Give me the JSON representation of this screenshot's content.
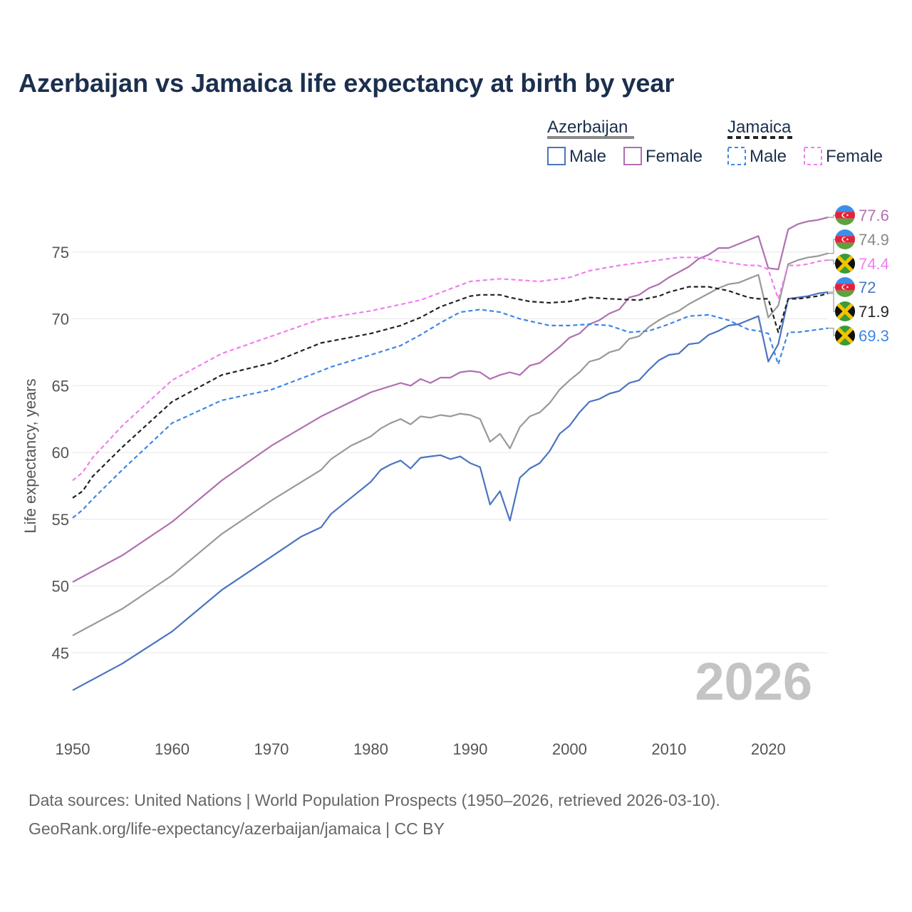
{
  "title": "Azerbaijan vs Jamaica life expectancy at birth by year",
  "legend": {
    "groups": [
      {
        "name": "Azerbaijan",
        "style": "solid",
        "color": "#888888"
      },
      {
        "name": "Jamaica",
        "style": "dashed",
        "color": "#222222"
      }
    ],
    "items": [
      {
        "label": "Male",
        "color": "#4a74c0",
        "style": "solid"
      },
      {
        "label": "Female",
        "color": "#b070b0",
        "style": "solid"
      },
      {
        "label": "Male",
        "color": "#3d87e6",
        "style": "dashed"
      },
      {
        "label": "Female",
        "color": "#f07ef0",
        "style": "dashed"
      }
    ]
  },
  "year_watermark": "2026",
  "footer": {
    "line1": "Data sources: United Nations | World Population Prospects (1950–2026, retrieved 2026-03-10).",
    "line2": "GeoRank.org/life-expectancy/azerbaijan/jamaica | CC BY"
  },
  "end_labels": [
    {
      "text": "77.6",
      "color": "#b070b0",
      "flag": "azerbaijan",
      "value": 77.6
    },
    {
      "text": "74.9",
      "color": "#888888",
      "flag": "azerbaijan",
      "value": 74.9
    },
    {
      "text": "74.4",
      "color": "#f07ef0",
      "flag": "jamaica",
      "value": 74.4
    },
    {
      "text": "72",
      "color": "#4a74c0",
      "flag": "azerbaijan",
      "value": 72.0
    },
    {
      "text": "71.9",
      "color": "#222222",
      "flag": "jamaica",
      "value": 71.9
    },
    {
      "text": "69.3",
      "color": "#3d87e6",
      "flag": "jamaica",
      "value": 69.3
    }
  ],
  "chart_data": {
    "type": "line",
    "title": "Azerbaijan vs Jamaica life expectancy at birth by year",
    "xlabel": "",
    "ylabel": "Life expectancy, years",
    "xlim": [
      1950,
      2026
    ],
    "ylim": [
      40,
      80
    ],
    "x_ticks": [
      1950,
      1960,
      1970,
      1980,
      1990,
      2000,
      2010,
      2020
    ],
    "y_ticks": [
      45,
      50,
      55,
      60,
      65,
      70,
      75
    ],
    "grid": true,
    "series": [
      {
        "name": "Azerbaijan Female",
        "color": "#b070b0",
        "dash": "solid",
        "points": [
          [
            1950,
            50.3
          ],
          [
            1955,
            52.3
          ],
          [
            1960,
            54.8
          ],
          [
            1965,
            57.9
          ],
          [
            1970,
            60.5
          ],
          [
            1975,
            62.7
          ],
          [
            1980,
            64.5
          ],
          [
            1983,
            65.2
          ],
          [
            1984,
            65.0
          ],
          [
            1985,
            65.5
          ],
          [
            1986,
            65.2
          ],
          [
            1987,
            65.6
          ],
          [
            1988,
            65.6
          ],
          [
            1989,
            66.0
          ],
          [
            1990,
            66.1
          ],
          [
            1991,
            66.0
          ],
          [
            1992,
            65.5
          ],
          [
            1993,
            65.8
          ],
          [
            1994,
            66.0
          ],
          [
            1995,
            65.8
          ],
          [
            1996,
            66.5
          ],
          [
            1997,
            66.7
          ],
          [
            1998,
            67.3
          ],
          [
            1999,
            67.9
          ],
          [
            2000,
            68.6
          ],
          [
            2001,
            68.9
          ],
          [
            2002,
            69.6
          ],
          [
            2003,
            69.9
          ],
          [
            2004,
            70.4
          ],
          [
            2005,
            70.7
          ],
          [
            2006,
            71.6
          ],
          [
            2007,
            71.8
          ],
          [
            2008,
            72.3
          ],
          [
            2009,
            72.6
          ],
          [
            2010,
            73.1
          ],
          [
            2011,
            73.5
          ],
          [
            2012,
            73.9
          ],
          [
            2013,
            74.5
          ],
          [
            2014,
            74.8
          ],
          [
            2015,
            75.3
          ],
          [
            2016,
            75.3
          ],
          [
            2017,
            75.6
          ],
          [
            2018,
            75.9
          ],
          [
            2019,
            76.2
          ],
          [
            2020,
            73.8
          ],
          [
            2021,
            73.7
          ],
          [
            2022,
            76.7
          ],
          [
            2023,
            77.1
          ],
          [
            2024,
            77.3
          ],
          [
            2025,
            77.4
          ],
          [
            2026,
            77.6
          ]
        ]
      },
      {
        "name": "Azerbaijan Both",
        "color": "#999999",
        "dash": "solid",
        "points": [
          [
            1950,
            46.3
          ],
          [
            1955,
            48.3
          ],
          [
            1960,
            50.8
          ],
          [
            1965,
            53.9
          ],
          [
            1970,
            56.4
          ],
          [
            1975,
            58.7
          ],
          [
            1976,
            59.5
          ],
          [
            1978,
            60.5
          ],
          [
            1980,
            61.2
          ],
          [
            1981,
            61.8
          ],
          [
            1982,
            62.2
          ],
          [
            1983,
            62.5
          ],
          [
            1984,
            62.1
          ],
          [
            1985,
            62.7
          ],
          [
            1986,
            62.6
          ],
          [
            1987,
            62.8
          ],
          [
            1988,
            62.7
          ],
          [
            1989,
            62.9
          ],
          [
            1990,
            62.8
          ],
          [
            1991,
            62.5
          ],
          [
            1992,
            60.8
          ],
          [
            1993,
            61.4
          ],
          [
            1994,
            60.3
          ],
          [
            1995,
            61.9
          ],
          [
            1996,
            62.7
          ],
          [
            1997,
            63.0
          ],
          [
            1998,
            63.7
          ],
          [
            1999,
            64.7
          ],
          [
            2000,
            65.4
          ],
          [
            2001,
            66.0
          ],
          [
            2002,
            66.8
          ],
          [
            2003,
            67.0
          ],
          [
            2004,
            67.5
          ],
          [
            2005,
            67.7
          ],
          [
            2006,
            68.5
          ],
          [
            2007,
            68.7
          ],
          [
            2008,
            69.4
          ],
          [
            2009,
            69.9
          ],
          [
            2010,
            70.3
          ],
          [
            2011,
            70.6
          ],
          [
            2012,
            71.1
          ],
          [
            2013,
            71.5
          ],
          [
            2014,
            71.9
          ],
          [
            2015,
            72.3
          ],
          [
            2016,
            72.6
          ],
          [
            2017,
            72.7
          ],
          [
            2018,
            73.0
          ],
          [
            2019,
            73.3
          ],
          [
            2020,
            70.1
          ],
          [
            2021,
            71.0
          ],
          [
            2022,
            74.1
          ],
          [
            2023,
            74.4
          ],
          [
            2024,
            74.6
          ],
          [
            2025,
            74.7
          ],
          [
            2026,
            74.9
          ]
        ]
      },
      {
        "name": "Azerbaijan Male",
        "color": "#4a74c0",
        "dash": "solid",
        "points": [
          [
            1950,
            42.2
          ],
          [
            1955,
            44.2
          ],
          [
            1960,
            46.6
          ],
          [
            1965,
            49.7
          ],
          [
            1970,
            52.2
          ],
          [
            1973,
            53.7
          ],
          [
            1975,
            54.4
          ],
          [
            1976,
            55.4
          ],
          [
            1978,
            56.6
          ],
          [
            1980,
            57.8
          ],
          [
            1981,
            58.7
          ],
          [
            1982,
            59.1
          ],
          [
            1983,
            59.4
          ],
          [
            1984,
            58.8
          ],
          [
            1985,
            59.6
          ],
          [
            1986,
            59.7
          ],
          [
            1987,
            59.8
          ],
          [
            1988,
            59.5
          ],
          [
            1989,
            59.7
          ],
          [
            1990,
            59.2
          ],
          [
            1991,
            58.9
          ],
          [
            1992,
            56.1
          ],
          [
            1993,
            57.1
          ],
          [
            1994,
            54.9
          ],
          [
            1995,
            58.1
          ],
          [
            1996,
            58.8
          ],
          [
            1997,
            59.2
          ],
          [
            1998,
            60.1
          ],
          [
            1999,
            61.4
          ],
          [
            2000,
            62.0
          ],
          [
            2001,
            63.0
          ],
          [
            2002,
            63.8
          ],
          [
            2003,
            64.0
          ],
          [
            2004,
            64.4
          ],
          [
            2005,
            64.6
          ],
          [
            2006,
            65.2
          ],
          [
            2007,
            65.4
          ],
          [
            2008,
            66.2
          ],
          [
            2009,
            66.9
          ],
          [
            2010,
            67.3
          ],
          [
            2011,
            67.4
          ],
          [
            2012,
            68.1
          ],
          [
            2013,
            68.2
          ],
          [
            2014,
            68.8
          ],
          [
            2015,
            69.1
          ],
          [
            2016,
            69.5
          ],
          [
            2017,
            69.6
          ],
          [
            2018,
            69.9
          ],
          [
            2019,
            70.2
          ],
          [
            2020,
            66.8
          ],
          [
            2021,
            68.1
          ],
          [
            2022,
            71.5
          ],
          [
            2023,
            71.6
          ],
          [
            2024,
            71.7
          ],
          [
            2025,
            71.9
          ],
          [
            2026,
            72.0
          ]
        ]
      },
      {
        "name": "Jamaica Female",
        "color": "#f07ef0",
        "dash": "dashed",
        "points": [
          [
            1950,
            57.9
          ],
          [
            1951,
            58.5
          ],
          [
            1952,
            59.6
          ],
          [
            1955,
            62.0
          ],
          [
            1960,
            65.4
          ],
          [
            1965,
            67.4
          ],
          [
            1970,
            68.7
          ],
          [
            1975,
            70.0
          ],
          [
            1980,
            70.6
          ],
          [
            1985,
            71.4
          ],
          [
            1990,
            72.8
          ],
          [
            1993,
            73.0
          ],
          [
            1995,
            72.9
          ],
          [
            1997,
            72.8
          ],
          [
            2000,
            73.1
          ],
          [
            2002,
            73.6
          ],
          [
            2005,
            74.0
          ],
          [
            2008,
            74.3
          ],
          [
            2010,
            74.5
          ],
          [
            2011,
            74.6
          ],
          [
            2013,
            74.6
          ],
          [
            2016,
            74.2
          ],
          [
            2018,
            74.0
          ],
          [
            2019,
            74.0
          ],
          [
            2020,
            73.7
          ],
          [
            2021,
            71.5
          ],
          [
            2022,
            74.0
          ],
          [
            2023,
            74.0
          ],
          [
            2024,
            74.1
          ],
          [
            2025,
            74.3
          ],
          [
            2026,
            74.4
          ]
        ]
      },
      {
        "name": "Jamaica Both",
        "color": "#222222",
        "dash": "dashed",
        "points": [
          [
            1950,
            56.6
          ],
          [
            1951,
            57.1
          ],
          [
            1952,
            58.2
          ],
          [
            1955,
            60.4
          ],
          [
            1960,
            63.8
          ],
          [
            1965,
            65.8
          ],
          [
            1970,
            66.7
          ],
          [
            1975,
            68.2
          ],
          [
            1980,
            68.9
          ],
          [
            1983,
            69.5
          ],
          [
            1985,
            70.1
          ],
          [
            1987,
            70.9
          ],
          [
            1990,
            71.7
          ],
          [
            1991,
            71.8
          ],
          [
            1993,
            71.8
          ],
          [
            1994,
            71.6
          ],
          [
            1996,
            71.3
          ],
          [
            1998,
            71.2
          ],
          [
            2000,
            71.3
          ],
          [
            2002,
            71.6
          ],
          [
            2004,
            71.5
          ],
          [
            2007,
            71.4
          ],
          [
            2009,
            71.7
          ],
          [
            2010,
            72.0
          ],
          [
            2012,
            72.4
          ],
          [
            2014,
            72.4
          ],
          [
            2016,
            72.1
          ],
          [
            2018,
            71.6
          ],
          [
            2019,
            71.5
          ],
          [
            2020,
            71.5
          ],
          [
            2021,
            69.0
          ],
          [
            2022,
            71.5
          ],
          [
            2023,
            71.5
          ],
          [
            2024,
            71.6
          ],
          [
            2025,
            71.7
          ],
          [
            2026,
            71.9
          ]
        ]
      },
      {
        "name": "Jamaica Male",
        "color": "#3d87e6",
        "dash": "dashed",
        "points": [
          [
            1950,
            55.1
          ],
          [
            1951,
            55.7
          ],
          [
            1952,
            56.5
          ],
          [
            1955,
            58.7
          ],
          [
            1960,
            62.2
          ],
          [
            1965,
            63.9
          ],
          [
            1970,
            64.7
          ],
          [
            1975,
            66.1
          ],
          [
            1976,
            66.4
          ],
          [
            1980,
            67.3
          ],
          [
            1983,
            68.0
          ],
          [
            1985,
            68.8
          ],
          [
            1987,
            69.7
          ],
          [
            1989,
            70.5
          ],
          [
            1991,
            70.7
          ],
          [
            1993,
            70.5
          ],
          [
            1995,
            70.0
          ],
          [
            1998,
            69.5
          ],
          [
            2000,
            69.5
          ],
          [
            2002,
            69.6
          ],
          [
            2004,
            69.5
          ],
          [
            2006,
            69.0
          ],
          [
            2008,
            69.1
          ],
          [
            2010,
            69.6
          ],
          [
            2012,
            70.2
          ],
          [
            2014,
            70.3
          ],
          [
            2016,
            69.9
          ],
          [
            2018,
            69.2
          ],
          [
            2019,
            69.1
          ],
          [
            2020,
            68.9
          ],
          [
            2021,
            66.6
          ],
          [
            2022,
            69.0
          ],
          [
            2023,
            69.0
          ],
          [
            2024,
            69.1
          ],
          [
            2025,
            69.2
          ],
          [
            2026,
            69.3
          ]
        ]
      }
    ]
  }
}
